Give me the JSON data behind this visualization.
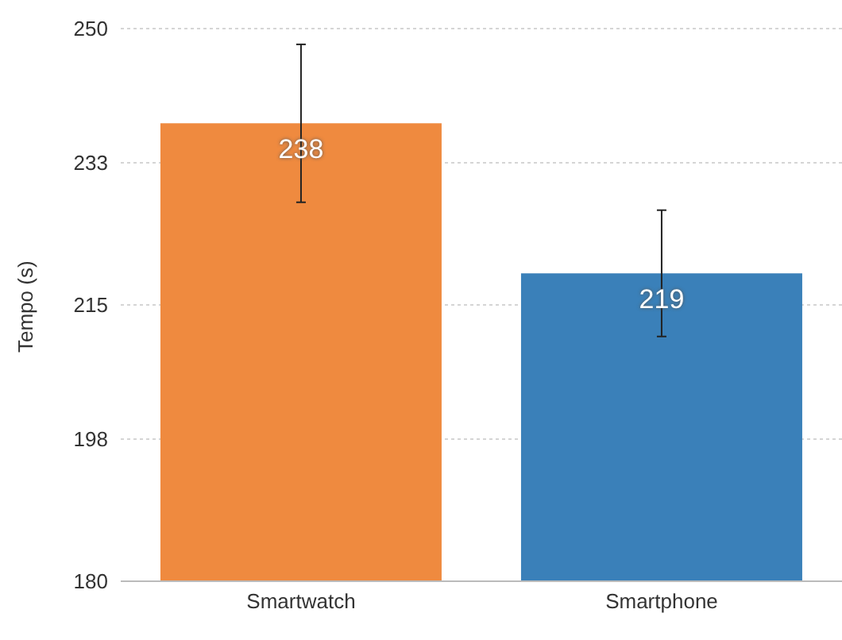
{
  "chart_data": {
    "type": "bar",
    "ylabel": "Tempo (s)",
    "categories": [
      "Smartwatch",
      "Smartphone"
    ],
    "values": [
      238,
      219
    ],
    "colors": [
      "#ef8a3f",
      "#3a80b9"
    ],
    "errors": [
      10,
      8
    ],
    "data_labels": true,
    "ylim": [
      180,
      250
    ],
    "yticks": [
      180,
      198,
      215,
      233,
      250
    ],
    "grid": "y"
  }
}
